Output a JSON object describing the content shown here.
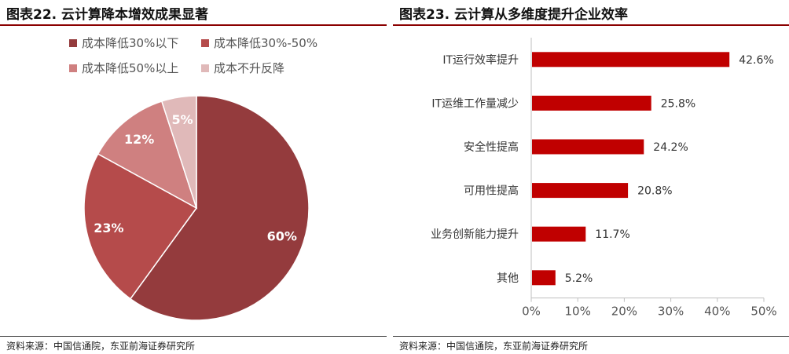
{
  "left": {
    "title_prefix": "图表",
    "title_number": "22.",
    "title_text": "云计算降本增效成果显著",
    "source": "资料来源：中国信通院，东亚前海证券研究所"
  },
  "right": {
    "title_prefix": "图表",
    "title_number": "23.",
    "title_text": "云计算从多维度提升企业效率",
    "source": "资料来源：中国信通院，东亚前海证券研究所"
  },
  "colors": {
    "slice1": "#943b3d",
    "slice2": "#b54b4b",
    "slice3": "#cf8080",
    "slice4": "#e0b9b9",
    "bar": "#c00000",
    "rule": "#8b0000"
  },
  "chart_data": [
    {
      "type": "pie",
      "title": "云计算降本增效成果显著",
      "categories": [
        "成本降低30%以下",
        "成本降低30%-50%",
        "成本降低50%以上",
        "成本不升反降"
      ],
      "values": [
        60,
        23,
        12,
        5
      ],
      "labels": [
        "60%",
        "23%",
        "12%",
        "5%"
      ],
      "legend_position": "top"
    },
    {
      "type": "bar",
      "orientation": "horizontal",
      "title": "云计算从多维度提升企业效率",
      "categories": [
        "IT运行效率提升",
        "IT运维工作量减少",
        "安全性提高",
        "可用性提高",
        "业务创新能力提升",
        "其他"
      ],
      "values": [
        42.6,
        25.8,
        24.2,
        20.8,
        11.7,
        5.2
      ],
      "labels": [
        "42.6%",
        "25.8%",
        "24.2%",
        "20.8%",
        "11.7%",
        "5.2%"
      ],
      "xlim": [
        0,
        50
      ],
      "xticks": [
        "0%",
        "10%",
        "20%",
        "30%",
        "40%",
        "50%"
      ],
      "grid": false
    }
  ]
}
